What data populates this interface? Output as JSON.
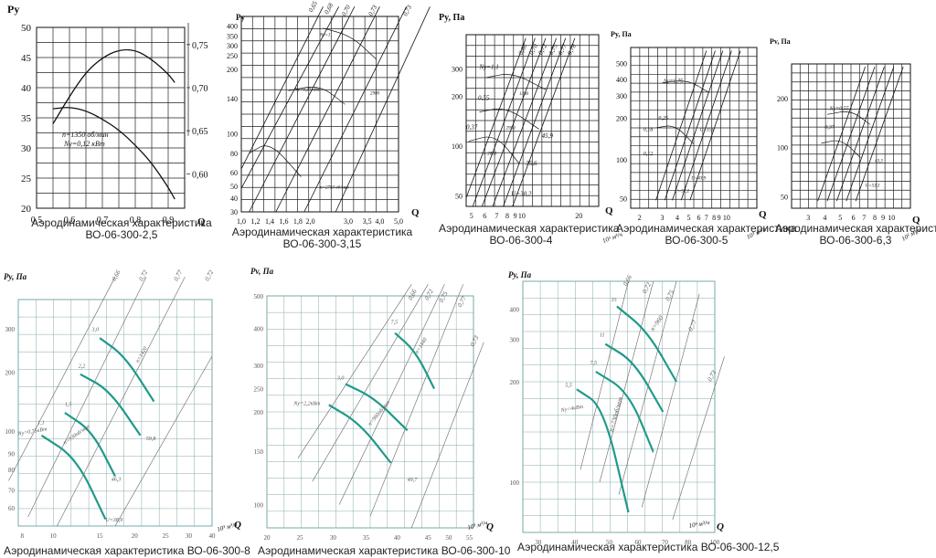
{
  "chart_data": [
    {
      "id": "p1",
      "type": "line",
      "caption": [
        "Аэродинамическая характеристика",
        "ВО-06-300-2,5"
      ],
      "ylabel": "Py",
      "xlabel": "Q",
      "x_ticks": [
        "0,5",
        "0,6",
        "0,7",
        "0,8",
        "0,9"
      ],
      "y_ticks": [
        "20",
        "25",
        "30",
        "35",
        "40",
        "45",
        "50"
      ],
      "y2_ticks": [
        "0,60",
        "0,65",
        "0,70",
        "0,75"
      ],
      "xlim": [
        0.5,
        0.95
      ],
      "ylim": [
        20,
        50
      ],
      "y2lim": [
        0.56,
        0.77
      ],
      "series": [
        {
          "x": [
            0.55,
            0.6,
            0.65,
            0.7,
            0.75,
            0.8,
            0.85,
            0.9,
            0.92
          ],
          "y": [
            36.5,
            36.8,
            36.2,
            34.8,
            33.0,
            30.5,
            27.5,
            23.5,
            21.5
          ],
          "axis": "left"
        },
        {
          "x": [
            0.55,
            0.6,
            0.65,
            0.7,
            0.75,
            0.8,
            0.85,
            0.9,
            0.92
          ],
          "y": [
            0.658,
            0.69,
            0.718,
            0.735,
            0.744,
            0.744,
            0.733,
            0.716,
            0.706
          ],
          "axis": "right"
        }
      ],
      "annotations": [
        "n=1350 об/мин",
        "Nу=0,12 кВт"
      ]
    },
    {
      "id": "p2",
      "type": "line",
      "caption": [
        "Аэродинамическая характеристика",
        "ВО-06-300-3,15"
      ],
      "ylabel": "Py",
      "xlabel": "Q",
      "x_ticks": [
        "1,0",
        "1,2",
        "1,4",
        "1,6",
        "1,8",
        "2,0",
        "3,0",
        "3,5",
        "4,0",
        "5,0"
      ],
      "y_ticks": [
        "30",
        "40",
        "50",
        "60",
        "80",
        "100",
        "140",
        "200",
        "250",
        "300",
        "350",
        "400"
      ],
      "eff_labels": [
        "0,65",
        "0,68",
        "0,70",
        "0,73",
        "0,73"
      ],
      "annotations": [
        "Nу=0,37 кВт",
        "n=2750 об/мин",
        "2900",
        "Nу=1"
      ]
    },
    {
      "id": "p3",
      "type": "line",
      "caption": [
        "Аэродинамическая характеристика",
        "ВО-06-300-4"
      ],
      "ylabel": "Py, Па",
      "xlabel": "Q",
      "x_unit": "10³ м³/ч",
      "x_ticks": [
        "5",
        "6",
        "7",
        "8",
        "9",
        "10",
        "20"
      ],
      "y_ticks": [
        "50",
        "100",
        "200",
        "300"
      ],
      "eff_labels": [
        "0,68",
        "0,70",
        "0,72",
        "0,75",
        "0,77",
        "0,78"
      ],
      "annotations": [
        "Ny=1,1",
        "0,55",
        "0,37",
        "45,9",
        "35,6",
        "U=30,2",
        "n=2850",
        "1390",
        "2950"
      ]
    },
    {
      "id": "p4",
      "type": "line",
      "caption": [
        "Аэродинамическая характеристика",
        "ВО-06-300-5"
      ],
      "ylabel": "Py, Па",
      "xlabel": "Q",
      "x_unit": "10³ м³/ч",
      "x_ticks": [
        "2",
        "3",
        "4",
        "5",
        "6",
        "7",
        "8",
        "9",
        "10"
      ],
      "y_ticks": [
        "50",
        "100",
        "200",
        "300",
        "400",
        "500"
      ],
      "annotations": [
        "Ny=0,75",
        "0,25",
        "0,18",
        "0,12",
        "U=35,0",
        "U=43,9",
        "U=57,2"
      ]
    },
    {
      "id": "p5",
      "type": "line",
      "caption": [
        "Аэродинамическая характеристика",
        "ВО-06-300-6,3"
      ],
      "ylabel": "Pv, Па",
      "xlabel": "Q",
      "x_unit": "10³ м³/ч",
      "x_ticks": [
        "3",
        "4",
        "5",
        "6",
        "7",
        "8",
        "9",
        "10"
      ],
      "y_ticks": [
        "50",
        "100",
        "200"
      ],
      "annotations": [
        "Ny=0,55",
        "0,37",
        "U=53,3",
        "43,3"
      ]
    },
    {
      "id": "p6",
      "type": "line",
      "caption": [
        "Аэродинамическая характеристика ВО-06-300-8"
      ],
      "ylabel": "Py, Па",
      "xlabel": "Q",
      "x_unit": "10³ м³/ч",
      "x_ticks": [
        "8",
        "10",
        "15",
        "20",
        "25",
        "30",
        "40"
      ],
      "y_ticks": [
        "60",
        "70",
        "80",
        "90",
        "100",
        "200",
        "300"
      ],
      "eff_labels": [
        "0,66",
        "0,72",
        "0,77",
        "0,72"
      ],
      "annotations": [
        "3,0",
        "2,2",
        "1,5",
        "1,1",
        "Ny=0,75кВт",
        "n=1420",
        "n=930об/мин",
        "59,8",
        "46,3",
        "U=38,9"
      ]
    },
    {
      "id": "p7",
      "type": "line",
      "caption": [
        "Аэродинамическая характеристика ВО-06-300-10"
      ],
      "ylabel": "Pv, Па",
      "xlabel": "Q",
      "x_unit": "10³ м³/ч",
      "x_ticks": [
        "20",
        "25",
        "30",
        "35",
        "40",
        "45",
        "50",
        "55"
      ],
      "y_ticks": [
        "100",
        "150",
        "200",
        "250",
        "300",
        "400",
        "500"
      ],
      "eff_labels": [
        "0,66",
        "0,72",
        "0,75",
        "0,77",
        "0,73"
      ],
      "annotations": [
        "7,5",
        "3,0",
        "Ny=2,2кВт",
        "n=1440",
        "n=960об/мин",
        "49,7"
      ]
    },
    {
      "id": "p8",
      "type": "line",
      "caption": [
        "Аэродинамическая характеристика ВО-06-300-12,5"
      ],
      "ylabel": "Py, Па",
      "xlabel": "Q",
      "x_unit": "10³ м³/ч",
      "x_ticks": [
        "30",
        "40",
        "50",
        "60",
        "70",
        "80",
        "100"
      ],
      "y_ticks": [
        "100",
        "200",
        "300",
        "400"
      ],
      "eff_labels": [
        "0,66",
        "0,72",
        "0,75",
        "0,77",
        "0,73"
      ],
      "annotations": [
        "15",
        "11",
        "7,5",
        "5,5",
        "Ny=4кВт",
        "n=960",
        "n=730об/мин"
      ]
    }
  ]
}
